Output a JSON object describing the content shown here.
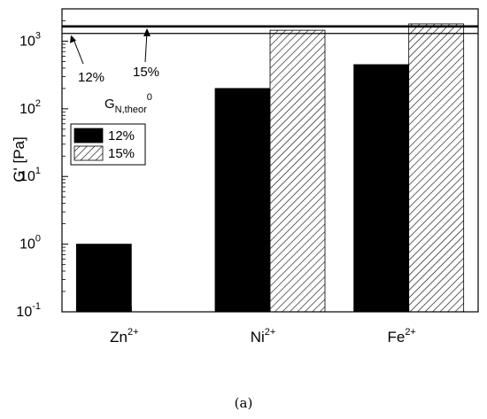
{
  "chart_data": {
    "type": "bar",
    "ylabel": "G' [Pa]",
    "yscale": "log",
    "ylim": [
      0.1,
      3000
    ],
    "yticks": [
      {
        "value": 0.1,
        "base": "10",
        "exp": "-1"
      },
      {
        "value": 1,
        "base": "10",
        "exp": "0"
      },
      {
        "value": 10,
        "base": "10",
        "exp": "1"
      },
      {
        "value": 100,
        "base": "10",
        "exp": "2"
      },
      {
        "value": 1000,
        "base": "10",
        "exp": "3"
      }
    ],
    "categories": [
      {
        "base": "Zn",
        "sup": "2+"
      },
      {
        "base": "Ni",
        "sup": "2+"
      },
      {
        "base": "Fe",
        "sup": "2+"
      }
    ],
    "series": [
      {
        "name": "12%",
        "values": [
          1,
          200,
          450
        ],
        "fill": "solid-black"
      },
      {
        "name": "15%",
        "values": [
          null,
          1450,
          1800
        ],
        "fill": "diagonal-hatch"
      }
    ],
    "reference_lines": [
      {
        "label": "12%",
        "value": 1300
      },
      {
        "label": "15%",
        "value": 1650
      }
    ],
    "reference_title": {
      "base": "G",
      "sub": "N,theor",
      "sup": "0"
    },
    "legend_position": "upper-left",
    "grid": false
  },
  "caption": "(a)"
}
